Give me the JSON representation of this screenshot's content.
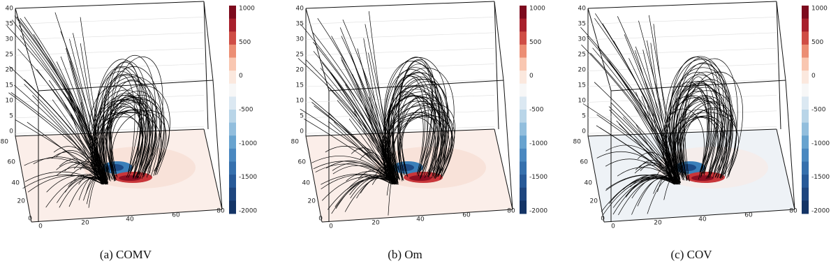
{
  "panels": [
    {
      "caption": "(a) COMV",
      "z_ticks": [
        40,
        35,
        30,
        25,
        20,
        15,
        10,
        5,
        0
      ],
      "y_ticks": [
        80,
        60,
        40,
        20,
        0
      ],
      "x_ticks": [
        0,
        20,
        40,
        60,
        80
      ],
      "colorbar_ticks": [
        1000,
        500,
        0,
        -500,
        -1000,
        -1500,
        -2000
      ]
    },
    {
      "caption": "(b) Om",
      "z_ticks": [
        40,
        35,
        30,
        25,
        20,
        15,
        10,
        5,
        0
      ],
      "y_ticks": [
        80,
        60,
        40,
        20,
        0
      ],
      "x_ticks": [
        0,
        20,
        40,
        60,
        80
      ],
      "colorbar_ticks": [
        1000,
        500,
        0,
        -500,
        -1000,
        -1500,
        -2000
      ]
    },
    {
      "caption": "(c) COV",
      "z_ticks": [
        40,
        35,
        30,
        25,
        20,
        15,
        10,
        5,
        0
      ],
      "y_ticks": [
        80,
        60,
        40,
        20,
        0
      ],
      "x_ticks": [
        0,
        20,
        40,
        60,
        80
      ],
      "colorbar_ticks": [
        1000,
        500,
        0,
        -500,
        -1000,
        -1500,
        -2000
      ]
    }
  ]
}
